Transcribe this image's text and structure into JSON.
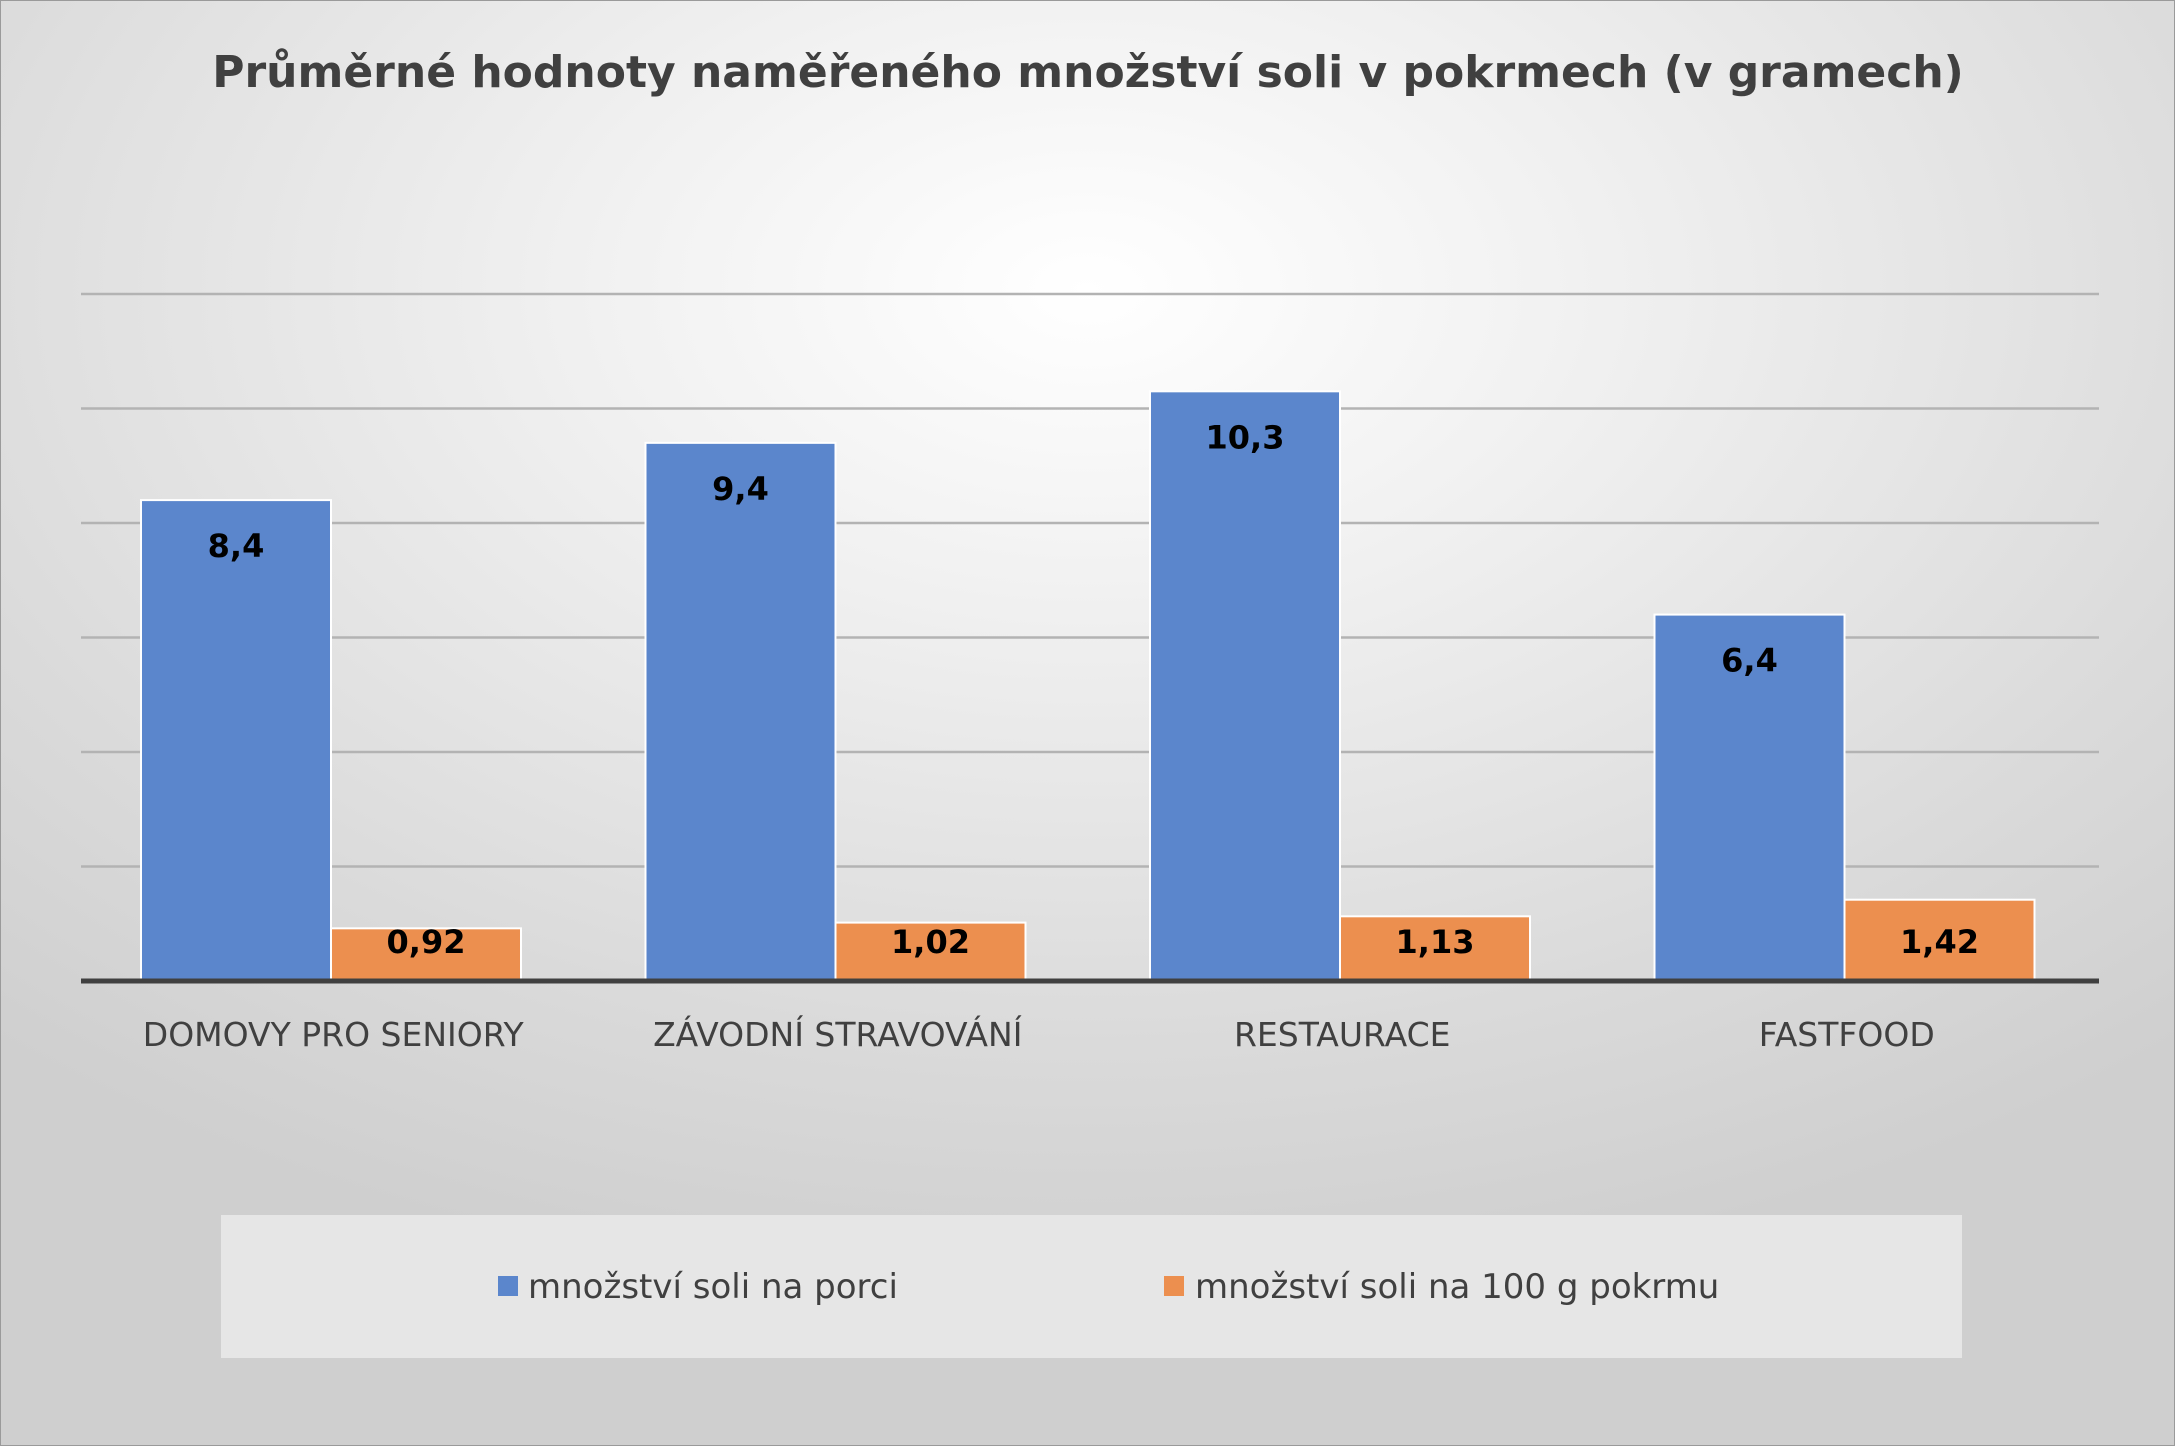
{
  "chart_data": {
    "type": "bar",
    "title": "Průměrné hodnoty naměřeného množství soli v pokrmech (v gramech)",
    "categories": [
      "DOMOVY PRO SENIORY",
      "ZÁVODNÍ STRAVOVÁNÍ",
      "RESTAURACE",
      "FASTFOOD"
    ],
    "series": [
      {
        "name": "množství soli na porci",
        "color": "#5b86cc",
        "values": [
          8.4,
          9.4,
          10.3,
          6.4
        ],
        "labels": [
          "8,4",
          "9,4",
          "10,3",
          "6,4"
        ]
      },
      {
        "name": "množství soli na 100 g pokrmu",
        "color": "#ec8f4f",
        "values": [
          0.92,
          1.02,
          1.13,
          1.42
        ],
        "labels": [
          "0,92",
          "1,02",
          "1,13",
          "1,42"
        ]
      }
    ],
    "ylim": [
      0,
      12
    ],
    "grid": true,
    "legend": "bottom"
  }
}
